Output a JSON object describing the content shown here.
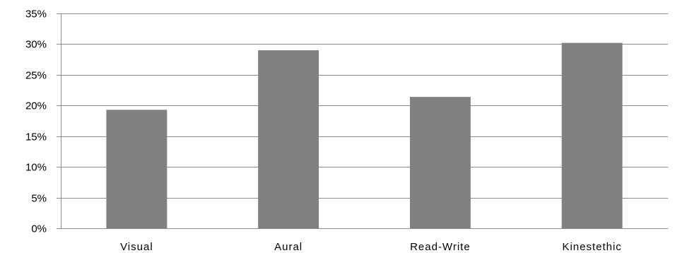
{
  "chart_data": {
    "type": "bar",
    "title": "",
    "xlabel": "",
    "ylabel": "",
    "categories": [
      "Visual",
      "Aural",
      "Read-Write",
      "Kinestethic"
    ],
    "values": [
      19.3,
      29.0,
      21.4,
      30.2
    ],
    "value_unit": "%",
    "ylim": [
      0,
      35
    ],
    "yticks": [
      0,
      5,
      10,
      15,
      20,
      25,
      30,
      35
    ],
    "ytick_labels": [
      "0%",
      "5%",
      "10%",
      "15%",
      "20%",
      "25%",
      "30%",
      "35%"
    ],
    "grid": true,
    "legend": "none",
    "colors": {
      "bar": "#808080",
      "grid": "#8c8c8c",
      "axis": "#8c8c8c",
      "background": "#ffffff"
    }
  }
}
